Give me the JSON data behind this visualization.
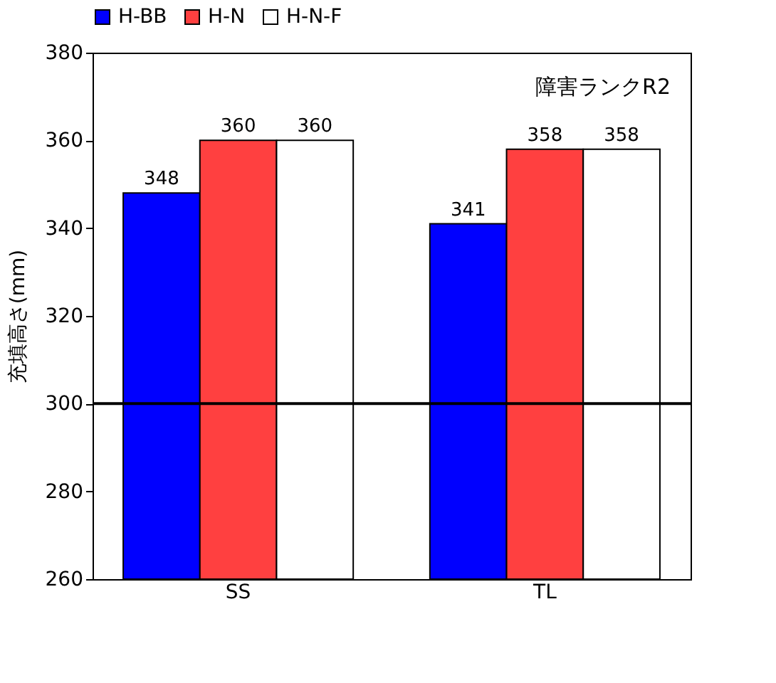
{
  "chart_data": {
    "type": "bar",
    "ylabel": "充填高さ(mm)",
    "categories": [
      "SS",
      "TL"
    ],
    "series": [
      {
        "name": "H-BB",
        "color": "#0000ff",
        "values": [
          348,
          341
        ]
      },
      {
        "name": "H-N",
        "color": "#ff4040",
        "values": [
          360,
          358
        ]
      },
      {
        "name": "H-N-F",
        "color": "#ffffff",
        "values": [
          360,
          358
        ]
      }
    ],
    "ylim": [
      260,
      380
    ],
    "yticks": [
      260,
      280,
      300,
      320,
      340,
      360,
      380
    ],
    "ref_lines": [
      {
        "axis": "y",
        "value": 300
      }
    ],
    "annotations": [
      "障害ランクR2"
    ],
    "data_labels": true,
    "grid": false,
    "legend": "top"
  }
}
